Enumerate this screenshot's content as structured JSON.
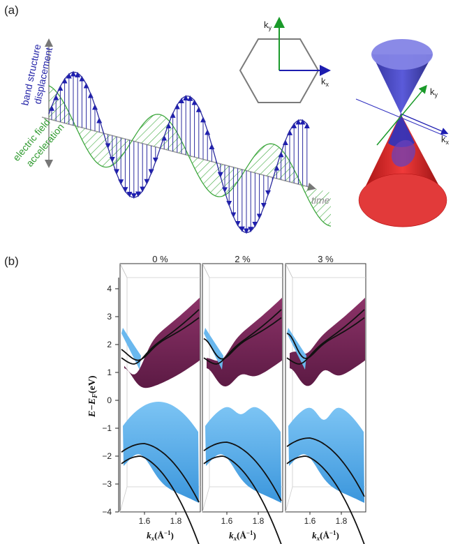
{
  "panel_a": {
    "label": "(a)",
    "wave": {
      "band_line1": "band structure",
      "band_line2": "displacement",
      "field_line1": "electric field",
      "field_line2": "acceleration",
      "time_label": "time"
    },
    "bz": {
      "ky_label": "k",
      "ky_sub": "y",
      "kx_label": "k",
      "kx_sub": "x"
    },
    "cone": {
      "ky_label": "k",
      "ky_sub": "y",
      "kx_label": "k",
      "kx_sub": "x"
    }
  },
  "panel_b": {
    "label": "(b)",
    "ylabel": "E−E",
    "ylabel_sub": "F",
    "yunit": "(eV)",
    "strains": [
      "0 %",
      "2 %",
      "3 %"
    ],
    "xlabel_main": "k",
    "xlabel_sub": "x",
    "xlabel_unit": "(Å",
    "xlabel_exp": "−1",
    "xlabel_close": ")",
    "x_ticks": [
      "1.6",
      "1.8"
    ],
    "y_ticks": [
      "4",
      "3",
      "2",
      "1",
      "0",
      "−1",
      "−2",
      "−3",
      "−4"
    ]
  },
  "colors": {
    "blue_wave": "#2b2b9e",
    "green_wave": "#3fa83f",
    "conduction": "#7a2a5c",
    "valence": "#5ab0ec",
    "cone_top": "#4a4ad0",
    "cone_bottom": "#e02020"
  }
}
